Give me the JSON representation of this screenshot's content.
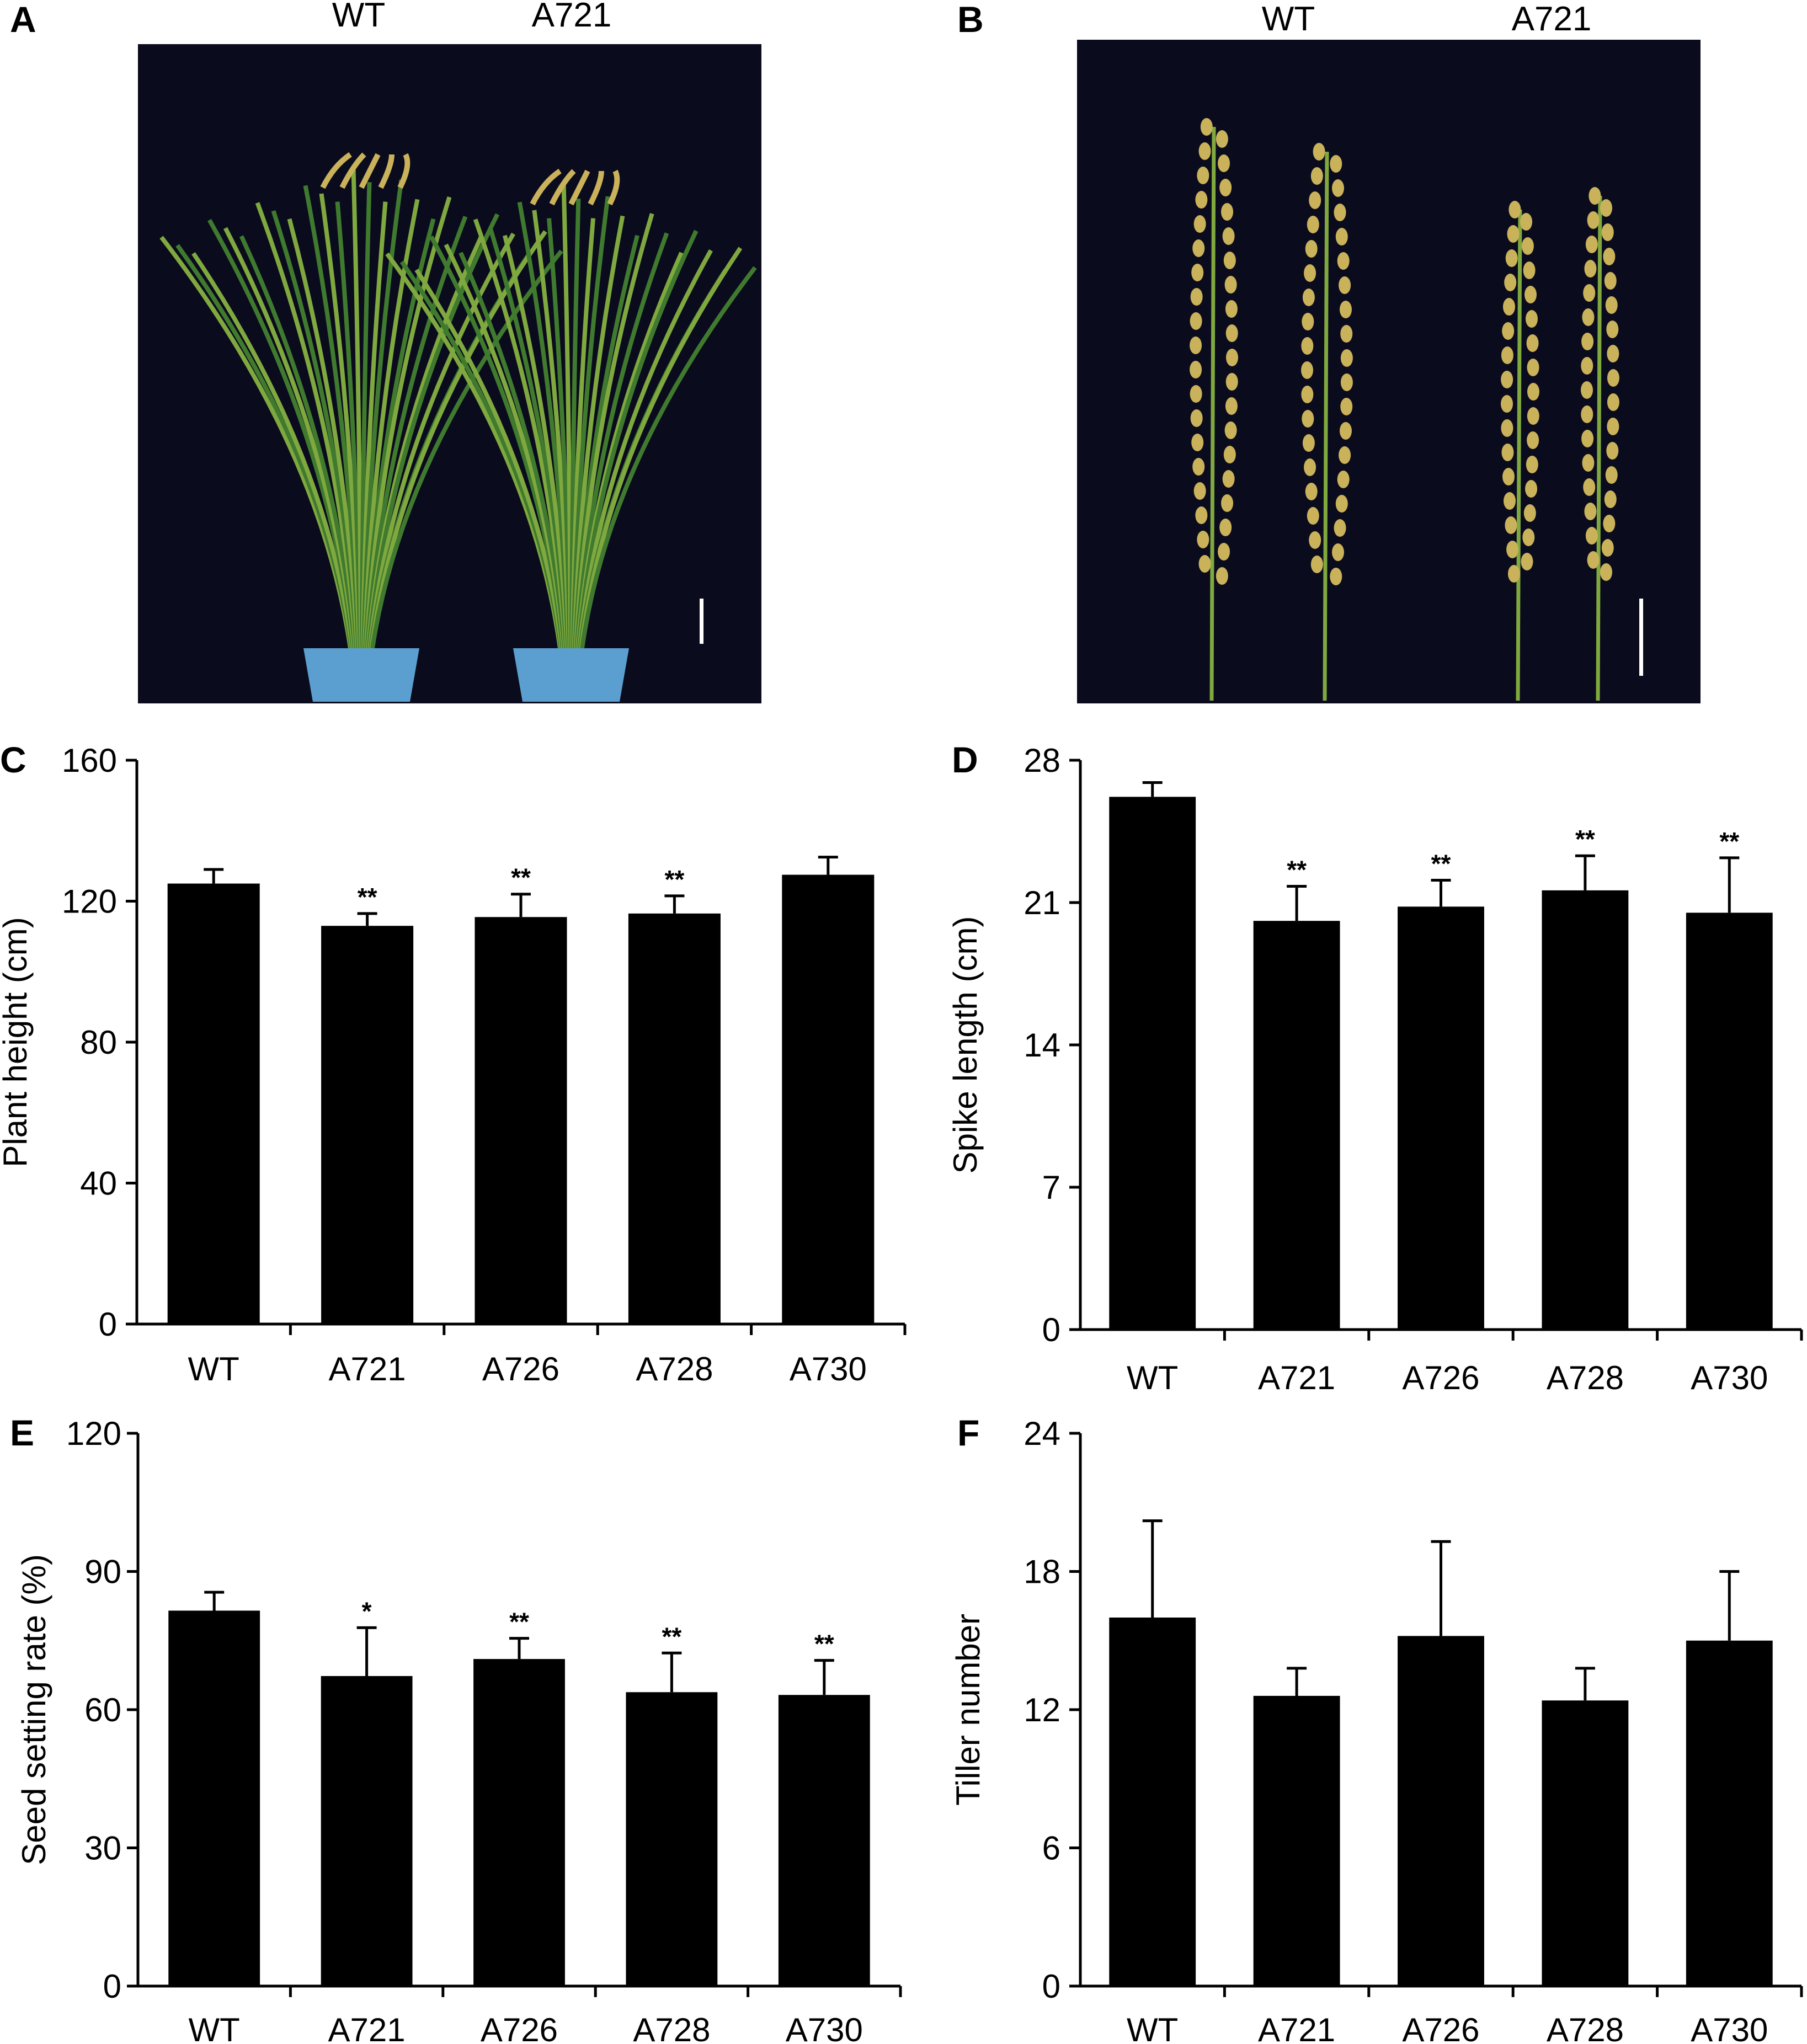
{
  "panels": {
    "A": {
      "letter": "A",
      "labels": [
        "WT",
        "A721"
      ]
    },
    "B": {
      "letter": "B",
      "labels": [
        "WT",
        "A721"
      ]
    }
  },
  "colors": {
    "photo_bg": "#0b0b1e",
    "leaf": "#3f7a2e",
    "leaf_light": "#7fa83f",
    "pot": "#5b9fd0",
    "panicle": "#c9b25a",
    "bar": "#000000"
  },
  "chart_data": [
    {
      "panel": "C",
      "type": "bar",
      "categories": [
        "WT",
        "A721",
        "A726",
        "A728",
        "A730"
      ],
      "values": [
        125,
        113,
        115.5,
        116.5,
        127.5
      ],
      "errors": [
        4,
        3.5,
        6.5,
        5,
        5
      ],
      "significance": [
        "",
        "**",
        "**",
        "**",
        ""
      ],
      "ylabel": "Plant height (cm)",
      "ylim": [
        0,
        160
      ],
      "yticks": [
        "0",
        "40",
        "80",
        "120",
        "160"
      ]
    },
    {
      "panel": "D",
      "type": "bar",
      "categories": [
        "WT",
        "A721",
        "A726",
        "A728",
        "A730"
      ],
      "values": [
        26.2,
        20.1,
        20.8,
        21.6,
        20.5
      ],
      "errors": [
        0.7,
        1.7,
        1.3,
        1.7,
        2.7
      ],
      "significance": [
        "",
        "**",
        "**",
        "**",
        "**"
      ],
      "ylabel": "Spike length (cm)",
      "ylim": [
        0,
        28
      ],
      "yticks": [
        "0",
        "7",
        "14",
        "21",
        "28"
      ]
    },
    {
      "panel": "E",
      "type": "bar",
      "categories": [
        "WT",
        "A721",
        "A726",
        "A728",
        "A730"
      ],
      "values": [
        81.5,
        67.3,
        71.0,
        63.8,
        63.2
      ],
      "errors": [
        4,
        10.5,
        4.5,
        8.5,
        7.5
      ],
      "significance": [
        "",
        "*",
        "**",
        "**",
        "**"
      ],
      "ylabel": "Seed setting rate (%)",
      "ylim": [
        0,
        120
      ],
      "yticks": [
        "0",
        "30",
        "60",
        "90",
        "120"
      ]
    },
    {
      "panel": "F",
      "type": "bar",
      "categories": [
        "WT",
        "A721",
        "A726",
        "A728",
        "A730"
      ],
      "values": [
        16.0,
        12.6,
        15.2,
        12.4,
        15.0
      ],
      "errors": [
        4.2,
        1.2,
        4.1,
        1.4,
        3.0
      ],
      "significance": [
        "",
        "",
        "",
        "",
        ""
      ],
      "ylabel": "Tiller number",
      "ylim": [
        0,
        24
      ],
      "yticks": [
        "0",
        "6",
        "12",
        "18",
        "24"
      ]
    }
  ]
}
